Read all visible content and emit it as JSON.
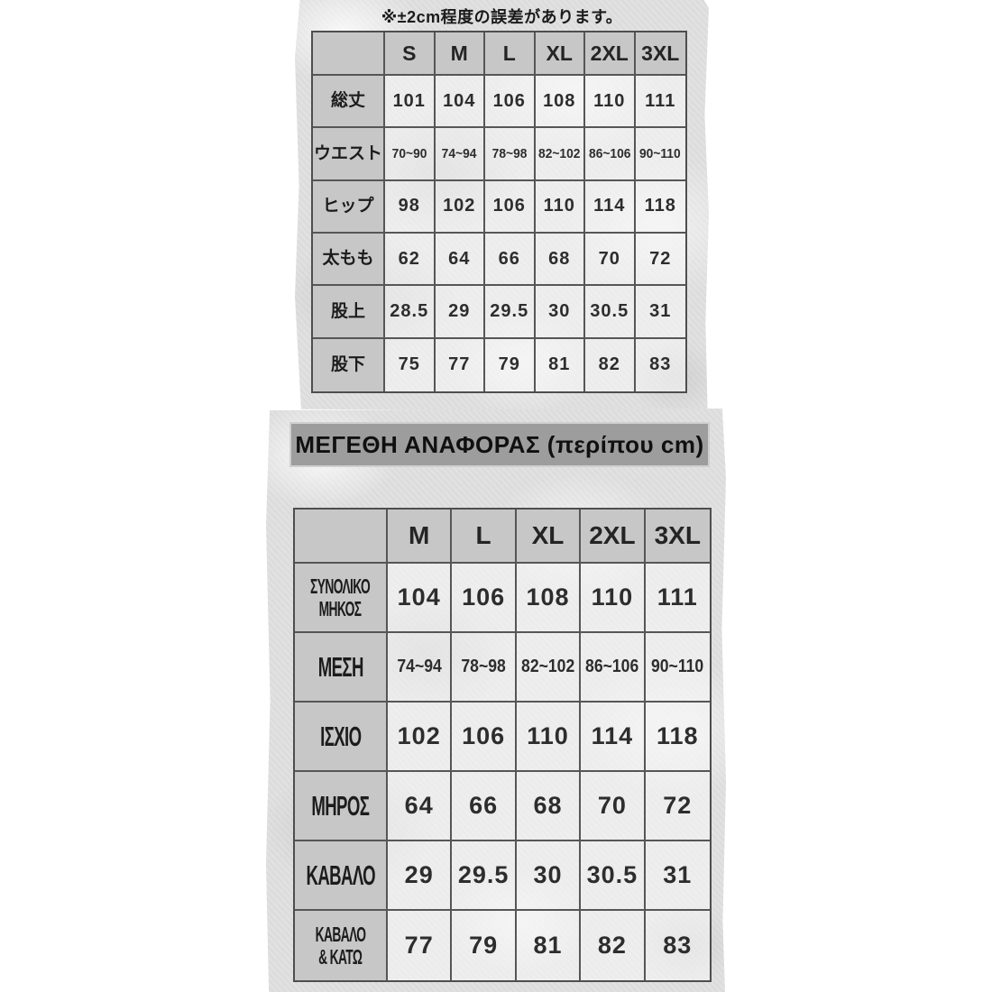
{
  "colors": {
    "page_background": "#ffffff",
    "panel_texture_base": "#e0e0e0",
    "table_header_fill": "#c7c7c7",
    "section_bar_fill": "#9d9d9d",
    "border": "#4e4e4e",
    "text": "#1c1c1c"
  },
  "chart_data": [
    {
      "type": "table",
      "name": "japanese-size-table",
      "title": "※±2cm程度の誤差があります。",
      "columns": [
        "S",
        "M",
        "L",
        "XL",
        "2XL",
        "3XL"
      ],
      "rows": [
        {
          "label": "総丈",
          "values": [
            "101",
            "104",
            "106",
            "108",
            "110",
            "111"
          ]
        },
        {
          "label": "ウエスト",
          "values": [
            "70~90",
            "74~94",
            "78~98",
            "82~102",
            "86~106",
            "90~110"
          ]
        },
        {
          "label": "ヒップ",
          "values": [
            "98",
            "102",
            "106",
            "110",
            "114",
            "118"
          ]
        },
        {
          "label": "太もも",
          "values": [
            "62",
            "64",
            "66",
            "68",
            "70",
            "72"
          ]
        },
        {
          "label": "股上",
          "values": [
            "28.5",
            "29",
            "29.5",
            "30",
            "30.5",
            "31"
          ]
        },
        {
          "label": "股下",
          "values": [
            "75",
            "77",
            "79",
            "81",
            "82",
            "83"
          ]
        }
      ]
    },
    {
      "type": "table",
      "name": "greek-size-table",
      "title": "ΜΕΓΕΘΗ ΑΝΑΦΟΡΑΣ (περίπου cm)",
      "columns": [
        "M",
        "L",
        "XL",
        "2XL",
        "3XL"
      ],
      "rows": [
        {
          "label": "ΣΥΝΟΛΙΚΟ\nΜΗΚΟΣ",
          "values": [
            "104",
            "106",
            "108",
            "110",
            "111"
          ]
        },
        {
          "label": "ΜΕΣΗ",
          "values": [
            "74~94",
            "78~98",
            "82~102",
            "86~106",
            "90~110"
          ]
        },
        {
          "label": "ΙΣΧΙΟ",
          "values": [
            "102",
            "106",
            "110",
            "114",
            "118"
          ]
        },
        {
          "label": "ΜΗΡΟΣ",
          "values": [
            "64",
            "66",
            "68",
            "70",
            "72"
          ]
        },
        {
          "label": "ΚΑΒΑΛΟ",
          "values": [
            "29",
            "29.5",
            "30",
            "30.5",
            "31"
          ]
        },
        {
          "label": "ΚΑΒΑΛΟ\n& ΚΑΤΩ",
          "values": [
            "77",
            "79",
            "81",
            "82",
            "83"
          ]
        }
      ]
    }
  ]
}
